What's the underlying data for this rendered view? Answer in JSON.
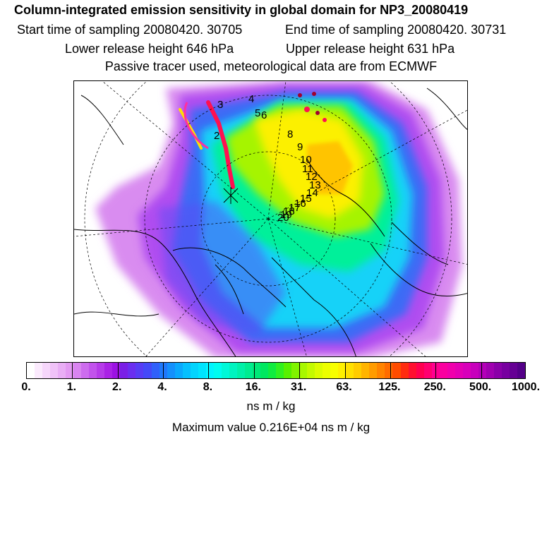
{
  "title": "Column-integrated emission sensitivity in global domain for NP3_20080419",
  "start_sampling": "Start time of sampling 20080420. 30705",
  "end_sampling": "End time of sampling 20080420. 30731",
  "lower_release": "Lower release height  646 hPa",
  "upper_release": "Upper release height  631 hPa",
  "tracer_info": "Passive tracer used, meteorological data are from ECMWF",
  "colorbar": {
    "tick_labels": [
      "0.",
      "1.",
      "2.",
      "4.",
      "8.",
      "16.",
      "31.",
      "63.",
      "125.",
      "250.",
      "500.",
      "1000."
    ],
    "colors": [
      "#ffffff",
      "#fbeafd",
      "#f6d6fb",
      "#f0c2f8",
      "#e9aef5",
      "#e39af2",
      "#d984f0",
      "#cd6cee",
      "#c253ec",
      "#b63be9",
      "#aa22e6",
      "#9c12e3",
      "#7a1fe6",
      "#6a2ef0",
      "#573cf5",
      "#4449f8",
      "#3060fa",
      "#1f78fb",
      "#1490fc",
      "#0aa8fd",
      "#05c0fe",
      "#02d4fe",
      "#00e4fe",
      "#00f4fe",
      "#00fcf0",
      "#00f8d8",
      "#00f4c0",
      "#00f0a8",
      "#00ec90",
      "#00e878",
      "#00e860",
      "#10ec40",
      "#30f020",
      "#58f000",
      "#80f400",
      "#a8f800",
      "#c4fa00",
      "#dcfc00",
      "#ecfe00",
      "#f8ff00",
      "#fff000",
      "#ffe000",
      "#ffcc00",
      "#ffb400",
      "#ff9c00",
      "#ff8400",
      "#ff6c00",
      "#ff4c00",
      "#ff2c10",
      "#ff1030",
      "#ff0050",
      "#ff0070",
      "#ff0090",
      "#fa00a0",
      "#f000ac",
      "#e400b4",
      "#d800ba",
      "#c800bc",
      "#b400b8",
      "#a000b0",
      "#8a00a8",
      "#7800a0",
      "#660094",
      "#540088"
    ],
    "unit": "ns m / kg"
  },
  "max_value": "Maximum value  0.216E+04 ns m / kg",
  "day_labels": [
    "2",
    "3",
    "4",
    "5",
    "6",
    "8",
    "9",
    "10",
    "11",
    "12",
    "13",
    "14",
    "15",
    "16",
    "17",
    "18",
    "19",
    "20"
  ]
}
